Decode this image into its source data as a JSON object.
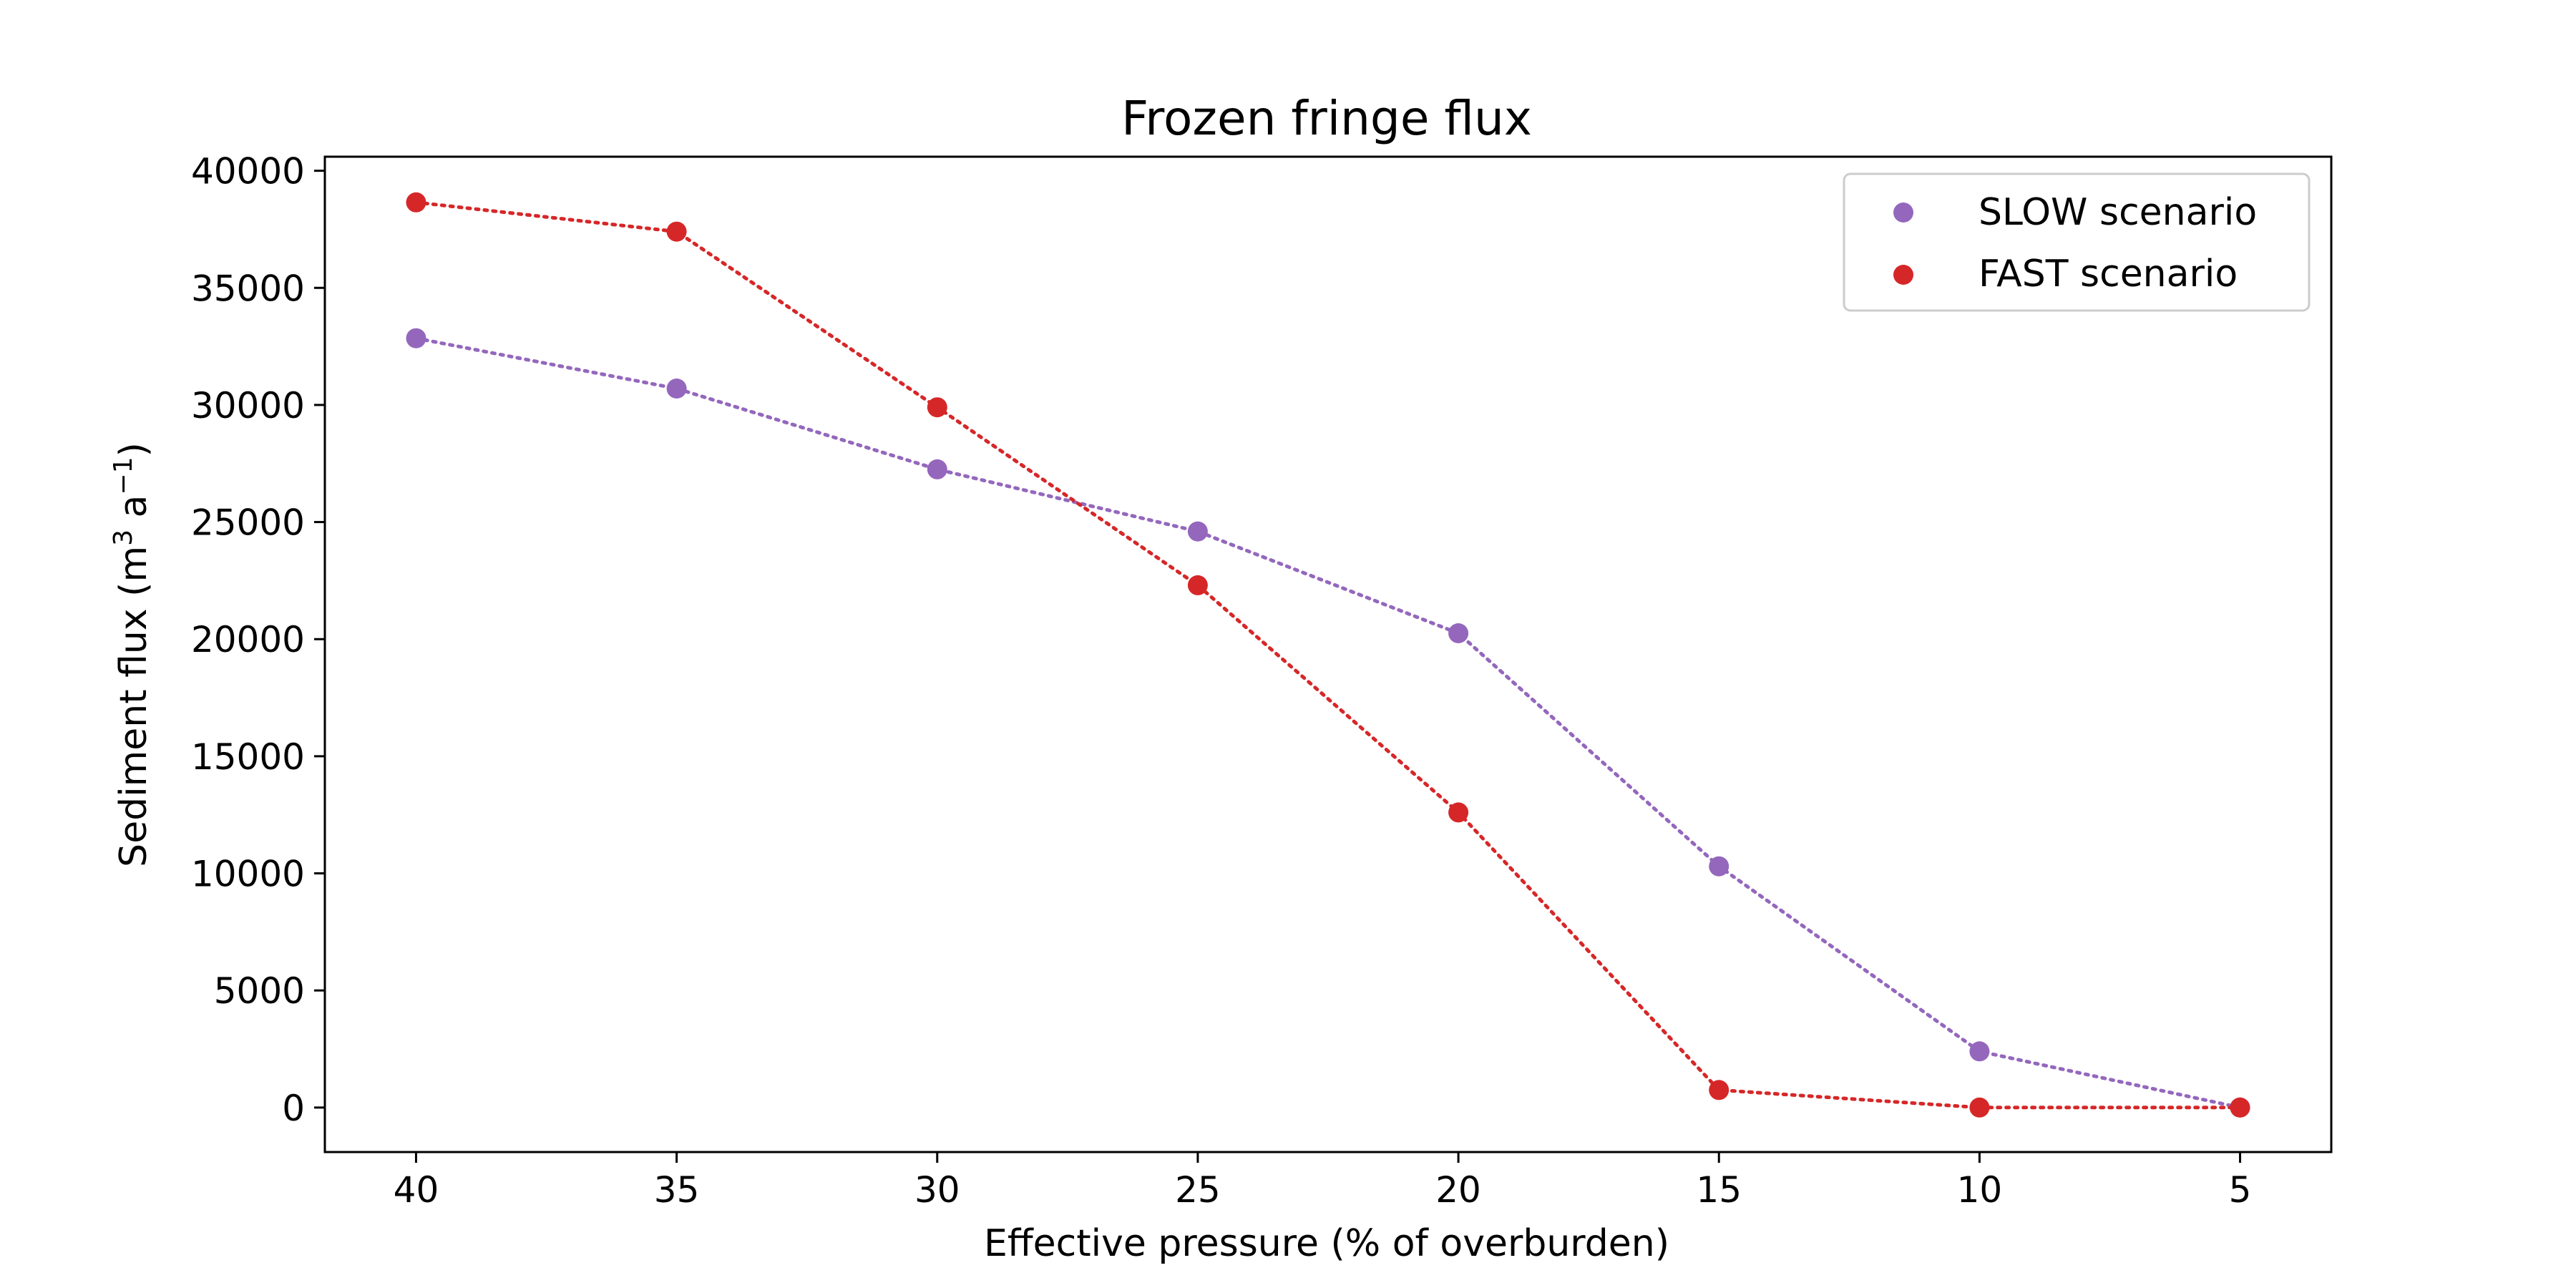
{
  "chart_data": {
    "type": "line",
    "title": "Frozen fringe flux",
    "xlabel": "Effective pressure (% of overburden)",
    "ylabel": {
      "prefix": "Sediment flux (m",
      "sup1": "3",
      "middle": " a",
      "sup2": "−1",
      "suffix": ")"
    },
    "x": [
      40,
      35,
      30,
      25,
      20,
      15,
      10,
      5
    ],
    "x_reversed": true,
    "xlim": [
      41.75,
      3.25
    ],
    "ylim": [
      -1900,
      40600
    ],
    "xticks": [
      40,
      35,
      30,
      25,
      20,
      15,
      10,
      5
    ],
    "yticks": [
      0,
      5000,
      10000,
      15000,
      20000,
      25000,
      30000,
      35000,
      40000
    ],
    "grid": false,
    "legend_position": "top-right",
    "line_style": "dotted",
    "series": [
      {
        "name": "SLOW scenario",
        "color": "#9467bd",
        "values": [
          32850,
          30700,
          27250,
          24600,
          20250,
          10300,
          2400,
          0
        ]
      },
      {
        "name": "FAST scenario",
        "color": "#d62728",
        "values": [
          38650,
          37400,
          29900,
          22300,
          12600,
          750,
          0,
          0
        ]
      }
    ]
  }
}
